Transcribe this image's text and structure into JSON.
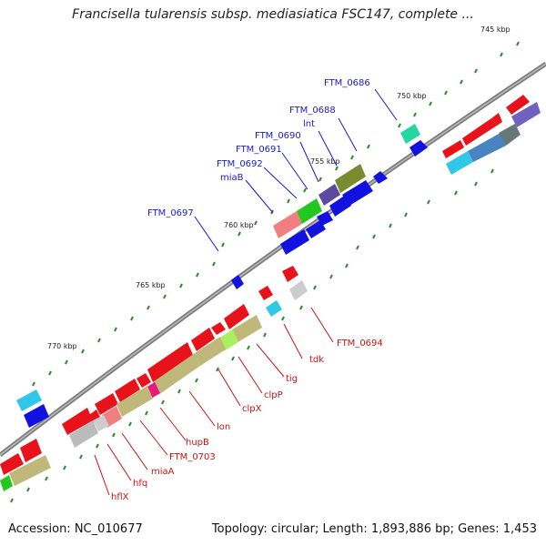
{
  "title": "Francisella tularensis subsp. mediasiatica FSC147, complete ...",
  "footer": {
    "accession": "Accession: NC_010677",
    "summary": "Topology: circular; Length: 1,893,886 bp; Genes: 1,453"
  },
  "kbp_labels": [
    "745 kbp",
    "750 kbp",
    "755 kbp",
    "760 kbp",
    "765 kbp",
    "770 kbp"
  ],
  "gene_labels_top": [
    "FTM_0686",
    "FTM_0688",
    "lnt",
    "FTM_0690",
    "FTM_0691",
    "FTM_0692",
    "miaB",
    "FTM_0697"
  ],
  "gene_labels_bottom": [
    "FTM_0694",
    "tdk",
    "tig",
    "clpP",
    "clpX",
    "lon",
    "hupB",
    "FTM_0703",
    "miaA",
    "hfq",
    "hflX"
  ],
  "colors": {
    "cds_red": "#e8121a",
    "cds_blue": "#1212e0",
    "backbone": "#888888",
    "tick_green": "#2e8b2e"
  }
}
